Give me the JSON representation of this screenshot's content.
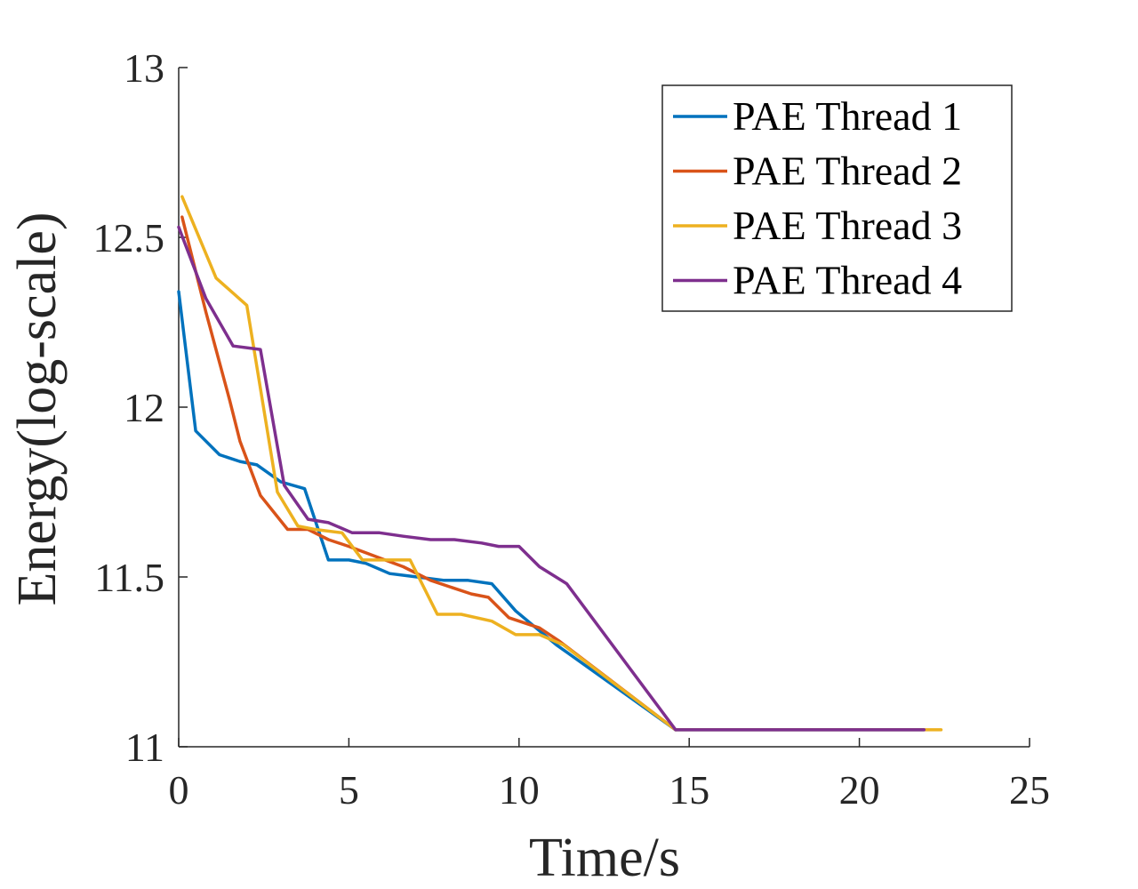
{
  "chart_data": {
    "type": "line",
    "xlabel": "Time/s",
    "ylabel": "Energy(log-scale)",
    "xlim": [
      0,
      25
    ],
    "ylim": [
      11,
      13
    ],
    "x_ticks": [
      0,
      5,
      10,
      15,
      20,
      25
    ],
    "x_tick_labels": [
      "0",
      "5",
      "10",
      "15",
      "20",
      "25"
    ],
    "y_ticks": [
      11,
      11.5,
      12,
      12.5,
      13
    ],
    "y_tick_labels": [
      "11",
      "11.5",
      "12",
      "12.5",
      "13"
    ],
    "grid": false,
    "legend_position": "top-right",
    "series": [
      {
        "name": "PAE Thread 1",
        "color": "#0072BD",
        "x": [
          0.0,
          0.5,
          1.2,
          1.8,
          2.3,
          3.0,
          3.7,
          4.4,
          5.0,
          5.5,
          6.2,
          7.0,
          7.8,
          8.5,
          9.2,
          9.9,
          10.5,
          11.1,
          14.6,
          21.9
        ],
        "y": [
          12.34,
          11.93,
          11.86,
          11.84,
          11.83,
          11.78,
          11.76,
          11.55,
          11.55,
          11.54,
          11.51,
          11.5,
          11.49,
          11.49,
          11.48,
          11.4,
          11.35,
          11.3,
          11.05,
          11.05
        ]
      },
      {
        "name": "PAE Thread 2",
        "color": "#D95319",
        "x": [
          0.1,
          0.8,
          1.5,
          1.8,
          2.4,
          3.2,
          3.8,
          4.4,
          5.0,
          5.8,
          6.6,
          7.4,
          8.0,
          8.6,
          9.1,
          9.7,
          10.6,
          11.2,
          14.6
        ],
        "y": [
          12.56,
          12.28,
          12.02,
          11.9,
          11.74,
          11.64,
          11.64,
          11.61,
          11.59,
          11.56,
          11.53,
          11.49,
          11.47,
          11.45,
          11.44,
          11.38,
          11.35,
          11.31,
          11.05
        ]
      },
      {
        "name": "PAE Thread 3",
        "color": "#EDB120",
        "x": [
          0.1,
          1.1,
          2.0,
          2.9,
          3.5,
          4.0,
          4.8,
          5.4,
          6.1,
          6.8,
          7.6,
          8.3,
          9.2,
          9.9,
          10.6,
          11.3,
          14.6,
          22.4
        ],
        "y": [
          12.62,
          12.38,
          12.3,
          11.75,
          11.65,
          11.64,
          11.63,
          11.55,
          11.55,
          11.55,
          11.39,
          11.39,
          11.37,
          11.33,
          11.33,
          11.3,
          11.05,
          11.05
        ]
      },
      {
        "name": "PAE Thread 4",
        "color": "#7E2F8E",
        "x": [
          0.0,
          0.8,
          1.6,
          2.4,
          3.1,
          3.8,
          4.4,
          5.1,
          5.9,
          6.6,
          7.4,
          8.1,
          8.9,
          9.4,
          10.0,
          10.6,
          11.4,
          14.6,
          21.9
        ],
        "y": [
          12.53,
          12.32,
          12.18,
          12.17,
          11.77,
          11.67,
          11.66,
          11.63,
          11.63,
          11.62,
          11.61,
          11.61,
          11.6,
          11.59,
          11.59,
          11.53,
          11.48,
          11.05,
          11.05
        ]
      }
    ]
  }
}
